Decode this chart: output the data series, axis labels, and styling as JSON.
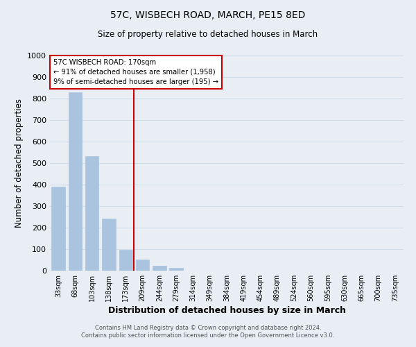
{
  "title": "57C, WISBECH ROAD, MARCH, PE15 8ED",
  "subtitle": "Size of property relative to detached houses in March",
  "xlabel": "Distribution of detached houses by size in March",
  "ylabel": "Number of detached properties",
  "bar_labels": [
    "33sqm",
    "68sqm",
    "103sqm",
    "138sqm",
    "173sqm",
    "209sqm",
    "244sqm",
    "279sqm",
    "314sqm",
    "349sqm",
    "384sqm",
    "419sqm",
    "454sqm",
    "489sqm",
    "524sqm",
    "560sqm",
    "595sqm",
    "630sqm",
    "665sqm",
    "700sqm",
    "735sqm"
  ],
  "bar_values": [
    390,
    828,
    532,
    241,
    96,
    52,
    22,
    12,
    0,
    0,
    0,
    0,
    0,
    0,
    0,
    0,
    0,
    0,
    0,
    0,
    0
  ],
  "bar_color": "#aac4e0",
  "bar_edge_color": "#aac4e0",
  "vline_x": 4.5,
  "vline_color": "#cc0000",
  "box_text_line1": "57C WISBECH ROAD: 170sqm",
  "box_text_line2": "← 91% of detached houses are smaller (1,958)",
  "box_text_line3": "9% of semi-detached houses are larger (195) →",
  "box_color": "#cc0000",
  "box_face_color": "#ffffff",
  "ylim": [
    0,
    1000
  ],
  "yticks": [
    0,
    100,
    200,
    300,
    400,
    500,
    600,
    700,
    800,
    900,
    1000
  ],
  "grid_color": "#d0dce8",
  "background_color": "#e8eef4",
  "plot_bg_color": "#e8eef4",
  "footer_line1": "Contains HM Land Registry data © Crown copyright and database right 2024.",
  "footer_line2": "Contains public sector information licensed under the Open Government Licence v3.0."
}
